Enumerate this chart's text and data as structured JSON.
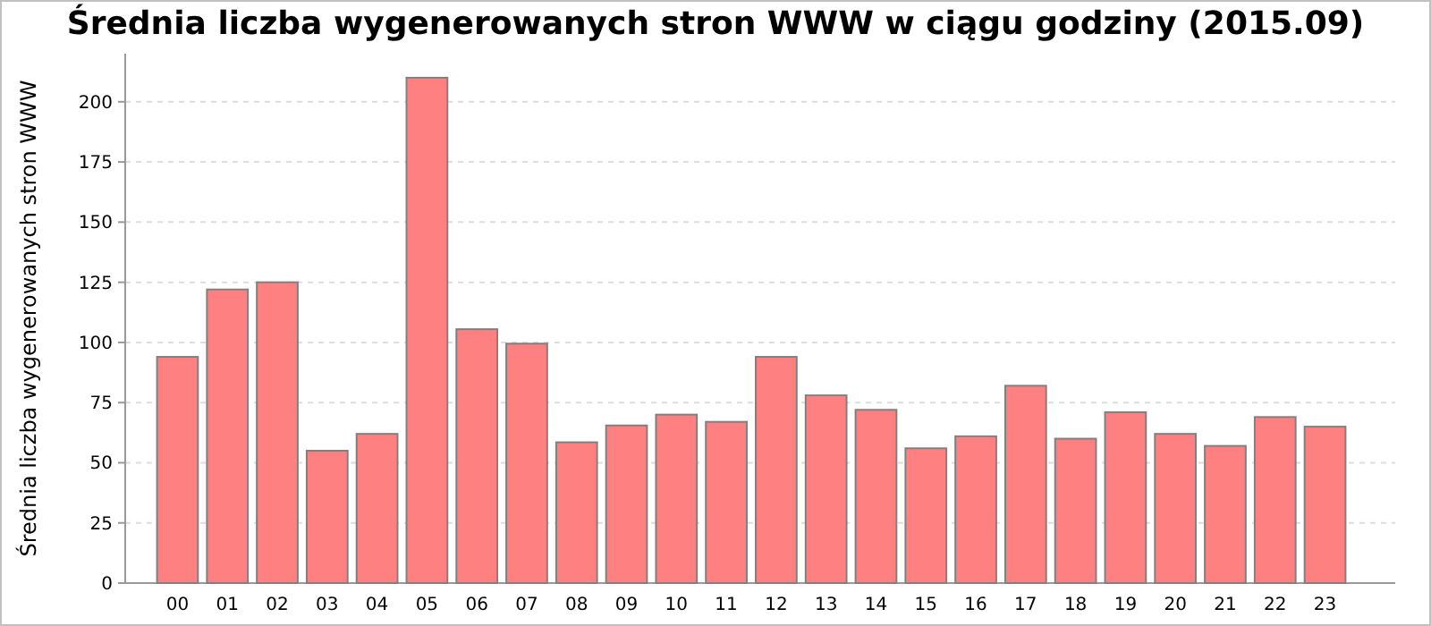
{
  "chart_data": {
    "type": "bar",
    "title": "Średnia liczba wygenerowanych stron WWW w ciągu godziny (2015.09)",
    "ylabel": "Średnia liczba wygenerowanych stron WWW",
    "categories": [
      "00",
      "01",
      "02",
      "03",
      "04",
      "05",
      "06",
      "07",
      "08",
      "09",
      "10",
      "11",
      "12",
      "13",
      "14",
      "15",
      "16",
      "17",
      "18",
      "19",
      "20",
      "21",
      "22",
      "23"
    ],
    "values": [
      94,
      122,
      125,
      55,
      62,
      210,
      105.5,
      99.5,
      58.5,
      65.5,
      70,
      67,
      94,
      78,
      72,
      56,
      61,
      82,
      60,
      71,
      62,
      57,
      69,
      65
    ],
    "color": "#ff8080",
    "ylim": [
      0,
      220
    ],
    "yticks": [
      0,
      25,
      50,
      75,
      100,
      125,
      150,
      175,
      200
    ],
    "grid": "y"
  }
}
